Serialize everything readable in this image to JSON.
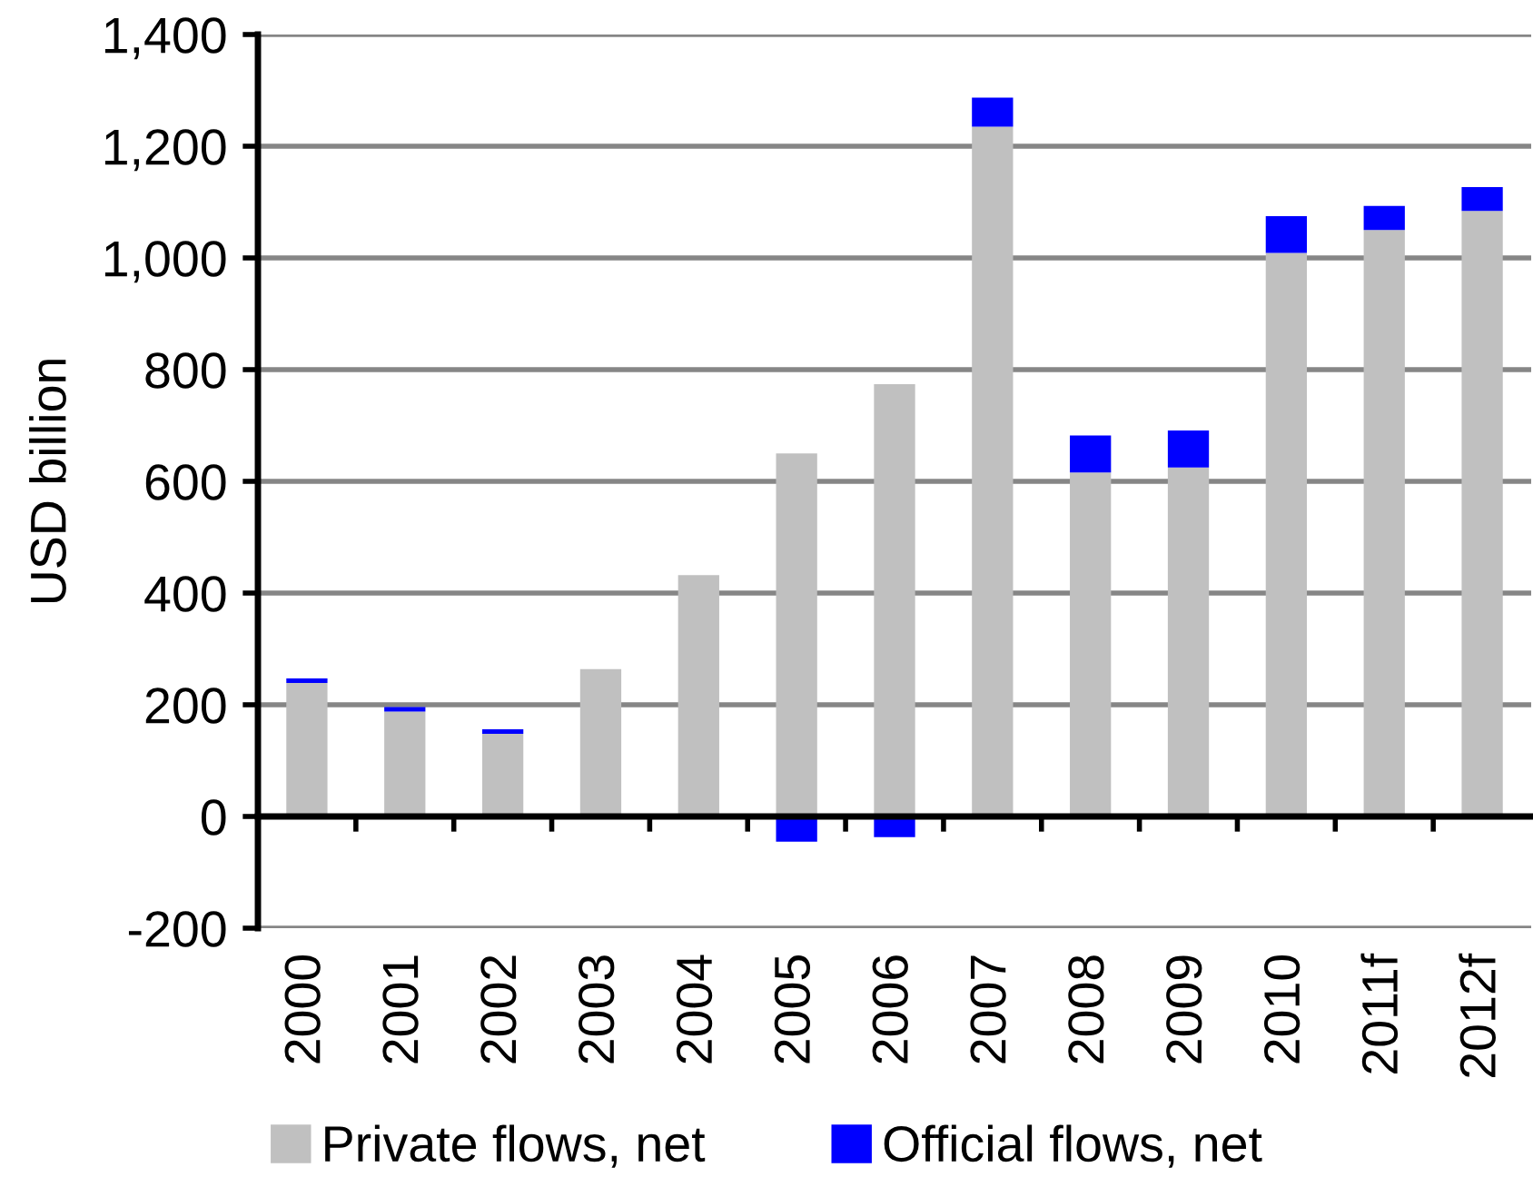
{
  "chart_data": {
    "type": "bar",
    "ylabel": "USD billion",
    "categories": [
      "2000",
      "2001",
      "2002",
      "2003",
      "2004",
      "2005",
      "2006",
      "2007",
      "2008",
      "2009",
      "2010",
      "2011f",
      "2012f"
    ],
    "stacked": true,
    "series": [
      {
        "name": "Private flows, net",
        "color": "#c0c0c0",
        "values": [
          239,
          188,
          148,
          264,
          432,
          650,
          774,
          1235,
          616,
          625,
          1009,
          1050,
          1084
        ]
      },
      {
        "name": "Official flows, net",
        "color": "#0000ff",
        "values": [
          8,
          8,
          8,
          0,
          0,
          -45,
          -37,
          52,
          66,
          66,
          66,
          43,
          43
        ]
      }
    ],
    "ylim": [
      -200,
      1400
    ],
    "yticks": [
      -200,
      0,
      200,
      400,
      600,
      800,
      {
        "value": 1000,
        "label": "1,000"
      },
      {
        "value": 1200,
        "label": "1,200"
      },
      {
        "value": 1400,
        "label": "1,400"
      }
    ],
    "grid": "y",
    "legend": "bottom"
  }
}
